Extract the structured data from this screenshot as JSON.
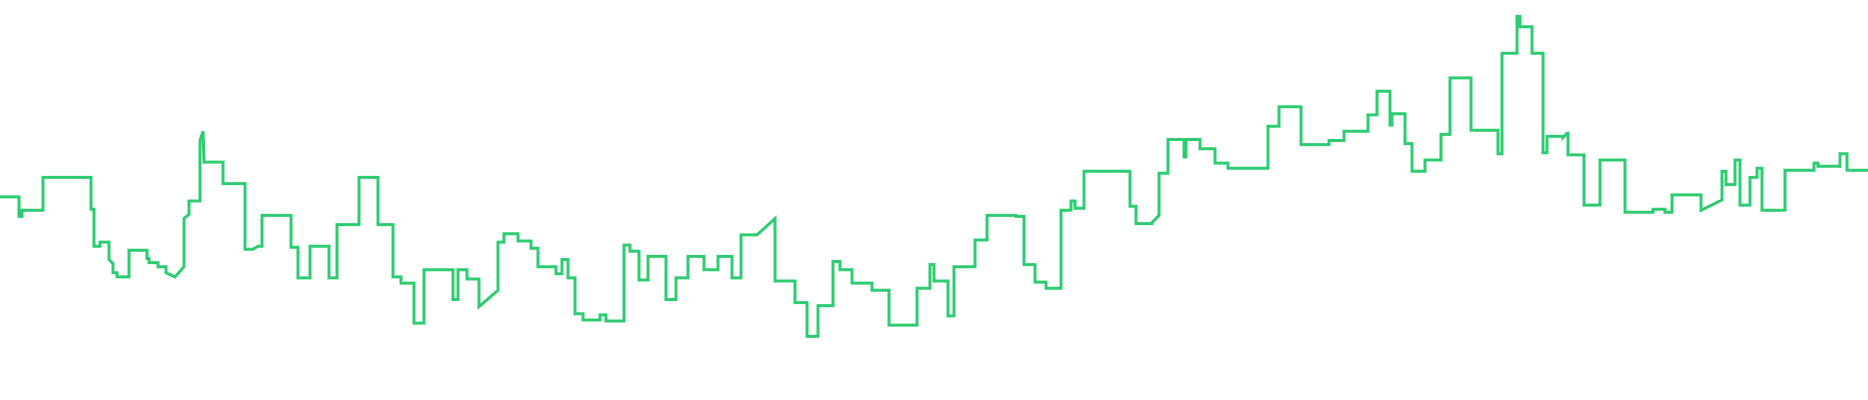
{
  "chart_data": {
    "type": "line",
    "line_shape": "stepped",
    "title": "",
    "xlabel": "",
    "ylabel": "",
    "axes_visible": false,
    "grid": false,
    "legend": "none",
    "ylim": [
      0,
      390
    ],
    "colors": {
      "line": "#2ecc71",
      "background": "#ffffff"
    },
    "series": [
      {
        "values": [
          [
            0,
            198
          ],
          [
            19,
            198
          ],
          [
            19,
            179
          ],
          [
            22,
            179
          ],
          [
            22,
            185
          ],
          [
            43,
            185
          ],
          [
            43,
            217
          ],
          [
            91,
            217
          ],
          [
            91,
            186
          ],
          [
            94,
            186
          ],
          [
            94,
            150
          ],
          [
            100,
            150
          ],
          [
            100,
            154
          ],
          [
            109,
            154
          ],
          [
            109,
            137
          ],
          [
            113,
            133
          ],
          [
            113,
            124
          ],
          [
            117,
            124
          ],
          [
            117,
            120
          ],
          [
            129,
            120
          ],
          [
            129,
            146
          ],
          [
            147,
            146
          ],
          [
            147,
            138
          ],
          [
            149,
            138
          ],
          [
            149,
            134
          ],
          [
            158,
            134
          ],
          [
            158,
            130
          ],
          [
            166,
            130
          ],
          [
            166,
            124
          ],
          [
            175,
            120
          ],
          [
            184,
            130
          ],
          [
            184,
            177
          ],
          [
            189,
            181
          ],
          [
            189,
            194
          ],
          [
            200,
            194
          ],
          [
            200,
            253
          ],
          [
            203,
            262
          ],
          [
            204,
            232
          ],
          [
            223,
            232
          ],
          [
            223,
            211
          ],
          [
            245,
            211
          ],
          [
            245,
            147
          ],
          [
            253,
            147
          ],
          [
            258,
            150
          ],
          [
            262,
            150
          ],
          [
            262,
            180
          ],
          [
            291,
            180
          ],
          [
            291,
            149
          ],
          [
            298,
            149
          ],
          [
            298,
            119
          ],
          [
            310,
            119
          ],
          [
            310,
            150
          ],
          [
            329,
            150
          ],
          [
            329,
            119
          ],
          [
            337,
            119
          ],
          [
            337,
            171
          ],
          [
            359,
            171
          ],
          [
            359,
            217
          ],
          [
            378,
            217
          ],
          [
            378,
            171
          ],
          [
            393,
            171
          ],
          [
            393,
            120
          ],
          [
            401,
            120
          ],
          [
            401,
            114
          ],
          [
            414,
            114
          ],
          [
            414,
            75
          ],
          [
            424,
            75
          ],
          [
            424,
            127
          ],
          [
            453,
            127
          ],
          [
            453,
            98
          ],
          [
            458,
            98
          ],
          [
            458,
            127
          ],
          [
            467,
            127
          ],
          [
            467,
            118
          ],
          [
            479,
            118
          ],
          [
            479,
            91
          ],
          [
            498,
            107
          ],
          [
            498,
            154
          ],
          [
            504,
            154
          ],
          [
            504,
            162
          ],
          [
            518,
            162
          ],
          [
            518,
            155
          ],
          [
            531,
            155
          ],
          [
            531,
            148
          ],
          [
            538,
            148
          ],
          [
            538,
            130
          ],
          [
            556,
            130
          ],
          [
            556,
            123
          ],
          [
            562,
            123
          ],
          [
            562,
            137
          ],
          [
            568,
            137
          ],
          [
            568,
            119
          ],
          [
            575,
            119
          ],
          [
            575,
            84
          ],
          [
            583,
            84
          ],
          [
            583,
            78
          ],
          [
            600,
            78
          ],
          [
            600,
            83
          ],
          [
            606,
            83
          ],
          [
            606,
            77
          ],
          [
            624,
            77
          ],
          [
            624,
            151
          ],
          [
            630,
            151
          ],
          [
            630,
            145
          ],
          [
            639,
            145
          ],
          [
            639,
            117
          ],
          [
            648,
            117
          ],
          [
            648,
            140
          ],
          [
            666,
            140
          ],
          [
            666,
            98
          ],
          [
            676,
            98
          ],
          [
            676,
            119
          ],
          [
            688,
            119
          ],
          [
            688,
            140
          ],
          [
            704,
            140
          ],
          [
            704,
            127
          ],
          [
            718,
            127
          ],
          [
            718,
            140
          ],
          [
            732,
            140
          ],
          [
            732,
            119
          ],
          [
            741,
            119
          ],
          [
            741,
            161
          ],
          [
            757,
            161
          ],
          [
            757,
            161
          ],
          [
            775,
            177
          ],
          [
            775,
            116
          ],
          [
            795,
            116
          ],
          [
            795,
            95
          ],
          [
            807,
            95
          ],
          [
            807,
            62
          ],
          [
            818,
            62
          ],
          [
            818,
            92
          ],
          [
            833,
            92
          ],
          [
            833,
            135
          ],
          [
            840,
            135
          ],
          [
            840,
            127
          ],
          [
            852,
            127
          ],
          [
            852,
            114
          ],
          [
            872,
            114
          ],
          [
            872,
            107
          ],
          [
            889,
            107
          ],
          [
            889,
            73
          ],
          [
            917,
            73
          ],
          [
            917,
            109
          ],
          [
            930,
            109
          ],
          [
            930,
            132
          ],
          [
            934,
            132
          ],
          [
            934,
            116
          ],
          [
            948,
            116
          ],
          [
            948,
            82
          ],
          [
            954,
            82
          ],
          [
            954,
            130
          ],
          [
            975,
            130
          ],
          [
            975,
            130
          ],
          [
            975,
            156
          ],
          [
            987,
            156
          ],
          [
            987,
            180
          ],
          [
            1016,
            180
          ],
          [
            1016,
            179
          ],
          [
            1024,
            179
          ],
          [
            1024,
            132
          ],
          [
            1035,
            132
          ],
          [
            1035,
            115
          ],
          [
            1046,
            115
          ],
          [
            1046,
            109
          ],
          [
            1061,
            109
          ],
          [
            1061,
            185
          ],
          [
            1071,
            185
          ],
          [
            1071,
            194
          ],
          [
            1075,
            194
          ],
          [
            1075,
            187
          ],
          [
            1084,
            187
          ],
          [
            1084,
            223
          ],
          [
            1113,
            223
          ],
          [
            1113,
            223
          ],
          [
            1130,
            223
          ],
          [
            1130,
            189
          ],
          [
            1136,
            189
          ],
          [
            1136,
            172
          ],
          [
            1152,
            172
          ],
          [
            1152,
            173
          ],
          [
            1159,
            180
          ],
          [
            1159,
            221
          ],
          [
            1168,
            221
          ],
          [
            1168,
            254
          ],
          [
            1184,
            254
          ],
          [
            1184,
            237
          ],
          [
            1186,
            237
          ],
          [
            1186,
            254
          ],
          [
            1200,
            254
          ],
          [
            1200,
            245
          ],
          [
            1215,
            245
          ],
          [
            1215,
            231
          ],
          [
            1228,
            231
          ],
          [
            1228,
            226
          ],
          [
            1268,
            226
          ],
          [
            1268,
            267
          ],
          [
            1279,
            267
          ],
          [
            1279,
            286
          ],
          [
            1301,
            286
          ],
          [
            1301,
            249
          ],
          [
            1329,
            249
          ],
          [
            1329,
            249
          ],
          [
            1329,
            253
          ],
          [
            1344,
            253
          ],
          [
            1344,
            262
          ],
          [
            1368,
            262
          ],
          [
            1368,
            278
          ],
          [
            1377,
            278
          ],
          [
            1377,
            301
          ],
          [
            1390,
            301
          ],
          [
            1390,
            268
          ],
          [
            1392,
            268
          ],
          [
            1392,
            279
          ],
          [
            1405,
            279
          ],
          [
            1405,
            250
          ],
          [
            1412,
            250
          ],
          [
            1412,
            223
          ],
          [
            1425,
            223
          ],
          [
            1425,
            234
          ],
          [
            1441,
            234
          ],
          [
            1441,
            259
          ],
          [
            1450,
            259
          ],
          [
            1450,
            314
          ],
          [
            1471,
            314
          ],
          [
            1471,
            263
          ],
          [
            1498,
            263
          ],
          [
            1498,
            240
          ],
          [
            1502,
            240
          ],
          [
            1502,
            338
          ],
          [
            1517,
            338
          ],
          [
            1517,
            374
          ],
          [
            1520,
            374
          ],
          [
            1520,
            364
          ],
          [
            1532,
            364
          ],
          [
            1532,
            338
          ],
          [
            1543,
            338
          ],
          [
            1543,
            241
          ],
          [
            1547,
            241
          ],
          [
            1547,
            257
          ],
          [
            1563,
            257
          ],
          [
            1563,
            256
          ],
          [
            1567,
            260
          ],
          [
            1568,
            260
          ],
          [
            1568,
            239
          ],
          [
            1584,
            239
          ],
          [
            1584,
            239
          ],
          [
            1584,
            190
          ],
          [
            1600,
            190
          ],
          [
            1600,
            190
          ],
          [
            1600,
            234
          ],
          [
            1625,
            234
          ],
          [
            1625,
            183
          ],
          [
            1653,
            183
          ],
          [
            1653,
            183
          ],
          [
            1653,
            186
          ],
          [
            1665,
            186
          ],
          [
            1665,
            183
          ],
          [
            1672,
            183
          ],
          [
            1672,
            200
          ],
          [
            1701,
            200
          ],
          [
            1701,
            185
          ],
          [
            1722,
            195
          ],
          [
            1722,
            223
          ],
          [
            1726,
            223
          ],
          [
            1726,
            210
          ],
          [
            1735,
            210
          ],
          [
            1735,
            234
          ],
          [
            1740,
            234
          ],
          [
            1740,
            234
          ],
          [
            1740,
            190
          ],
          [
            1750,
            190
          ],
          [
            1750,
            217
          ],
          [
            1757,
            217
          ],
          [
            1757,
            217
          ],
          [
            1757,
            226
          ],
          [
            1762,
            226
          ],
          [
            1762,
            185
          ],
          [
            1785,
            185
          ],
          [
            1785,
            224
          ],
          [
            1814,
            224
          ],
          [
            1814,
            231
          ],
          [
            1818,
            231
          ],
          [
            1818,
            228
          ],
          [
            1840,
            228
          ],
          [
            1840,
            240
          ],
          [
            1847,
            240
          ],
          [
            1847,
            224
          ],
          [
            1868,
            224
          ]
        ]
      }
    ]
  }
}
